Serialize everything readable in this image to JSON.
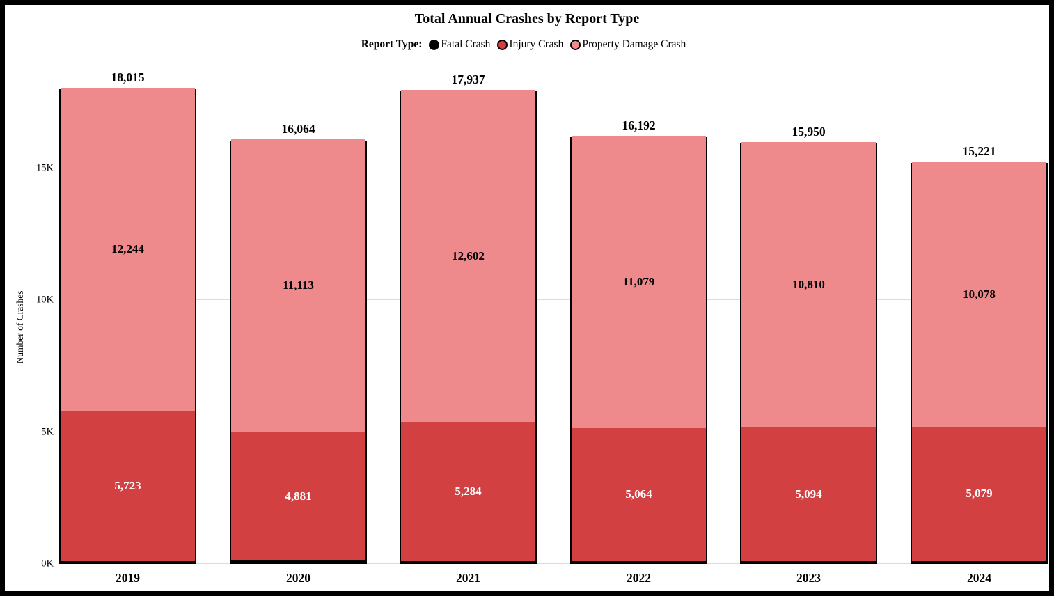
{
  "chart": {
    "title": "Total Annual Crashes by Report Type",
    "legend_title": "Report Type:",
    "y_axis_title": "Number of Crashes"
  },
  "chart_data": {
    "type": "bar",
    "stacked": true,
    "title": "Total Annual Crashes by Report Type",
    "legend_title": "Report Type:",
    "legend_position": "top",
    "grid": true,
    "xlabel": "",
    "ylabel": "Number of Crashes",
    "ylim": [
      0,
      18015
    ],
    "categories": [
      "2019",
      "2020",
      "2021",
      "2022",
      "2023",
      "2024"
    ],
    "series": [
      {
        "name": "Fatal Crash",
        "color": "#000000",
        "values": [
          48,
          70,
          51,
          49,
          46,
          64
        ],
        "show_value_labels": false
      },
      {
        "name": "Injury Crash",
        "color": "#d24042",
        "label_color": "#ffffff",
        "values": [
          5723,
          4881,
          5284,
          5064,
          5094,
          5079
        ],
        "show_value_labels": true
      },
      {
        "name": "Property Damage Crash",
        "color": "#ee8a8c",
        "label_color": "#000000",
        "values": [
          12244,
          11113,
          12602,
          11079,
          10810,
          10078
        ],
        "show_value_labels": true
      }
    ],
    "totals": [
      18015,
      16064,
      17937,
      16192,
      15950,
      15221
    ],
    "yticks": [
      {
        "value": 0,
        "label": "0K"
      },
      {
        "value": 5000,
        "label": "5K"
      },
      {
        "value": 10000,
        "label": "10K"
      },
      {
        "value": 15000,
        "label": "15K"
      }
    ]
  }
}
